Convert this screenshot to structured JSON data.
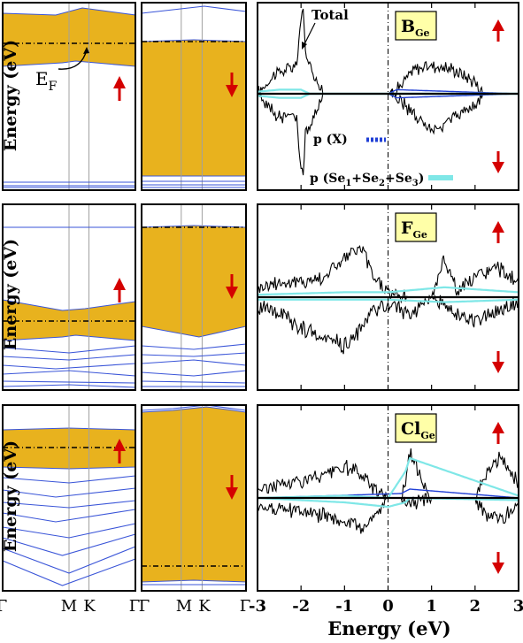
{
  "figure": {
    "colors": {
      "band_fill": "#e8b21e",
      "band_line": "#3a55d8",
      "grid_line": "#a0a0a0",
      "dos_total": "#000000",
      "dos_x": "#1f3fd6",
      "dos_se": "#7fe7e7",
      "arrow": "#d40000",
      "label_bg": "#ffffa8"
    },
    "band_axis_label": "Energy (eV)",
    "dos_axis_label": "Energy (eV)",
    "kpath_labels": [
      "Γ",
      "M",
      "K",
      "Γ",
      "Γ",
      "M",
      "K",
      "Γ"
    ],
    "dos_x_ticks": [
      "-3",
      "-2",
      "-1",
      "0",
      "1",
      "2",
      "3"
    ],
    "fermi_label_main": "E",
    "fermi_label_sub": "F",
    "total_label": "Total",
    "legend": [
      {
        "label": "p (X)",
        "color": "#1f3fd6",
        "style": "dotted"
      },
      {
        "label_parts": [
          "p (Se",
          "1",
          "+Se",
          "2",
          "+Se",
          "3",
          ")"
        ],
        "color": "#7fe7e7",
        "style": "solid"
      }
    ]
  },
  "chart_data": [
    {
      "type": "line",
      "panel": "B_Ge",
      "label_main": "B",
      "label_sub": "Ge",
      "xlim": [
        -3,
        3
      ],
      "x_ticks": [
        -3,
        -2,
        -1,
        0,
        1,
        2,
        3
      ],
      "fermi_level": 0,
      "series": [
        {
          "name": "Total",
          "x": [
            -3.0,
            -2.6,
            -2.3,
            -2.1,
            -2.0,
            -1.95,
            -1.9,
            -1.5,
            -1.0,
            -0.5,
            0.0,
            0.3,
            0.6,
            1.0,
            1.5,
            2.0,
            2.2,
            3.0
          ],
          "y_up": [
            0.0,
            0.5,
            0.6,
            0.7,
            1.9,
            2.0,
            1.0,
            0.0,
            0.0,
            0.0,
            0.0,
            0.2,
            0.6,
            0.7,
            0.6,
            0.3,
            0.0,
            0.0
          ],
          "y_down": [
            0.0,
            -0.5,
            -0.6,
            -0.6,
            -1.9,
            -2.0,
            -1.0,
            0.0,
            0.0,
            0.0,
            0.0,
            -0.2,
            -0.5,
            -0.9,
            -0.6,
            -0.3,
            0.0,
            0.0
          ]
        },
        {
          "name": "p (X)",
          "x": [
            -3.0,
            -2.0,
            0.0,
            0.2,
            3.0
          ],
          "y_up": [
            0.0,
            0.0,
            0.0,
            0.1,
            0.0
          ],
          "y_down": [
            0.0,
            0.0,
            0.0,
            -0.1,
            0.0
          ]
        },
        {
          "name": "p (Se1+Se2+Se3)",
          "x": [
            -3.0,
            -2.5,
            -2.0,
            -1.8,
            3.0
          ],
          "y_up": [
            0.05,
            0.1,
            0.1,
            0.0,
            0.0
          ],
          "y_down": [
            -0.05,
            -0.1,
            -0.1,
            0.0,
            0.0
          ]
        }
      ]
    },
    {
      "type": "line",
      "panel": "F_Ge",
      "label_main": "F",
      "label_sub": "Ge",
      "xlim": [
        -3,
        3
      ],
      "x_ticks": [
        -3,
        -2,
        -1,
        0,
        1,
        2,
        3
      ],
      "fermi_level": 0,
      "series": [
        {
          "name": "Total",
          "x": [
            -3.0,
            -2.5,
            -2.0,
            -1.5,
            -1.0,
            -0.6,
            -0.4,
            0.0,
            0.5,
            1.0,
            1.3,
            1.6,
            2.0,
            2.5,
            3.0
          ],
          "y_up": [
            0.2,
            0.3,
            0.3,
            0.4,
            0.8,
            1.0,
            0.5,
            0.1,
            0.0,
            0.0,
            0.8,
            0.1,
            0.4,
            0.6,
            0.3
          ],
          "y_down": [
            -0.2,
            -0.3,
            -0.6,
            -0.8,
            -1.0,
            -0.6,
            -0.3,
            -0.1,
            -0.4,
            0.0,
            -0.2,
            -0.3,
            -0.5,
            -0.3,
            -0.1
          ]
        },
        {
          "name": "p (X)",
          "x": [
            -3.0,
            0.0,
            3.0
          ],
          "y_up": [
            0.0,
            0.0,
            0.0
          ],
          "y_down": [
            0.0,
            0.0,
            0.0
          ]
        },
        {
          "name": "p (Se1+Se2+Se3)",
          "x": [
            -3.0,
            -1.0,
            0.0,
            1.3,
            3.0
          ],
          "y_up": [
            0.05,
            0.1,
            0.1,
            0.2,
            0.1
          ],
          "y_down": [
            -0.05,
            -0.05,
            -0.05,
            -0.1,
            -0.05
          ]
        }
      ]
    },
    {
      "type": "line",
      "panel": "Cl_Ge",
      "label_main": "Cl",
      "label_sub": "Ge",
      "xlim": [
        -3,
        3
      ],
      "x_ticks": [
        -3,
        -2,
        -1,
        0,
        1,
        2,
        3
      ],
      "fermi_level": 0,
      "series": [
        {
          "name": "Total",
          "x": [
            -3.0,
            -2.5,
            -2.0,
            -1.5,
            -1.0,
            -0.6,
            -0.4,
            0.0,
            0.3,
            0.4,
            0.5,
            1.0,
            2.0,
            2.3,
            2.6,
            3.0
          ],
          "y_up": [
            0.2,
            0.3,
            0.4,
            0.5,
            0.7,
            0.5,
            0.3,
            0.0,
            0.0,
            0.4,
            1.0,
            0.0,
            0.0,
            0.6,
            0.9,
            0.3
          ],
          "y_down": [
            -0.2,
            -0.3,
            -0.3,
            -0.4,
            -0.5,
            -0.7,
            -0.5,
            0.0,
            0.0,
            -0.1,
            -0.1,
            0.0,
            0.0,
            -0.4,
            -0.5,
            -0.2
          ]
        },
        {
          "name": "p (X)",
          "x": [
            -3.0,
            0.3,
            0.5,
            3.0
          ],
          "y_up": [
            0.0,
            0.1,
            0.2,
            0.0
          ],
          "y_down": [
            0.0,
            0.0,
            0.0,
            0.0
          ]
        },
        {
          "name": "p (Se1+Se2+Se3)",
          "x": [
            -3.0,
            -1.0,
            0.0,
            0.4,
            0.5,
            3.0
          ],
          "y_up": [
            0.0,
            0.05,
            0.0,
            0.6,
            0.9,
            0.05
          ],
          "y_down": [
            0.0,
            -0.1,
            -0.2,
            -0.1,
            0.0,
            -0.05
          ]
        }
      ]
    }
  ]
}
